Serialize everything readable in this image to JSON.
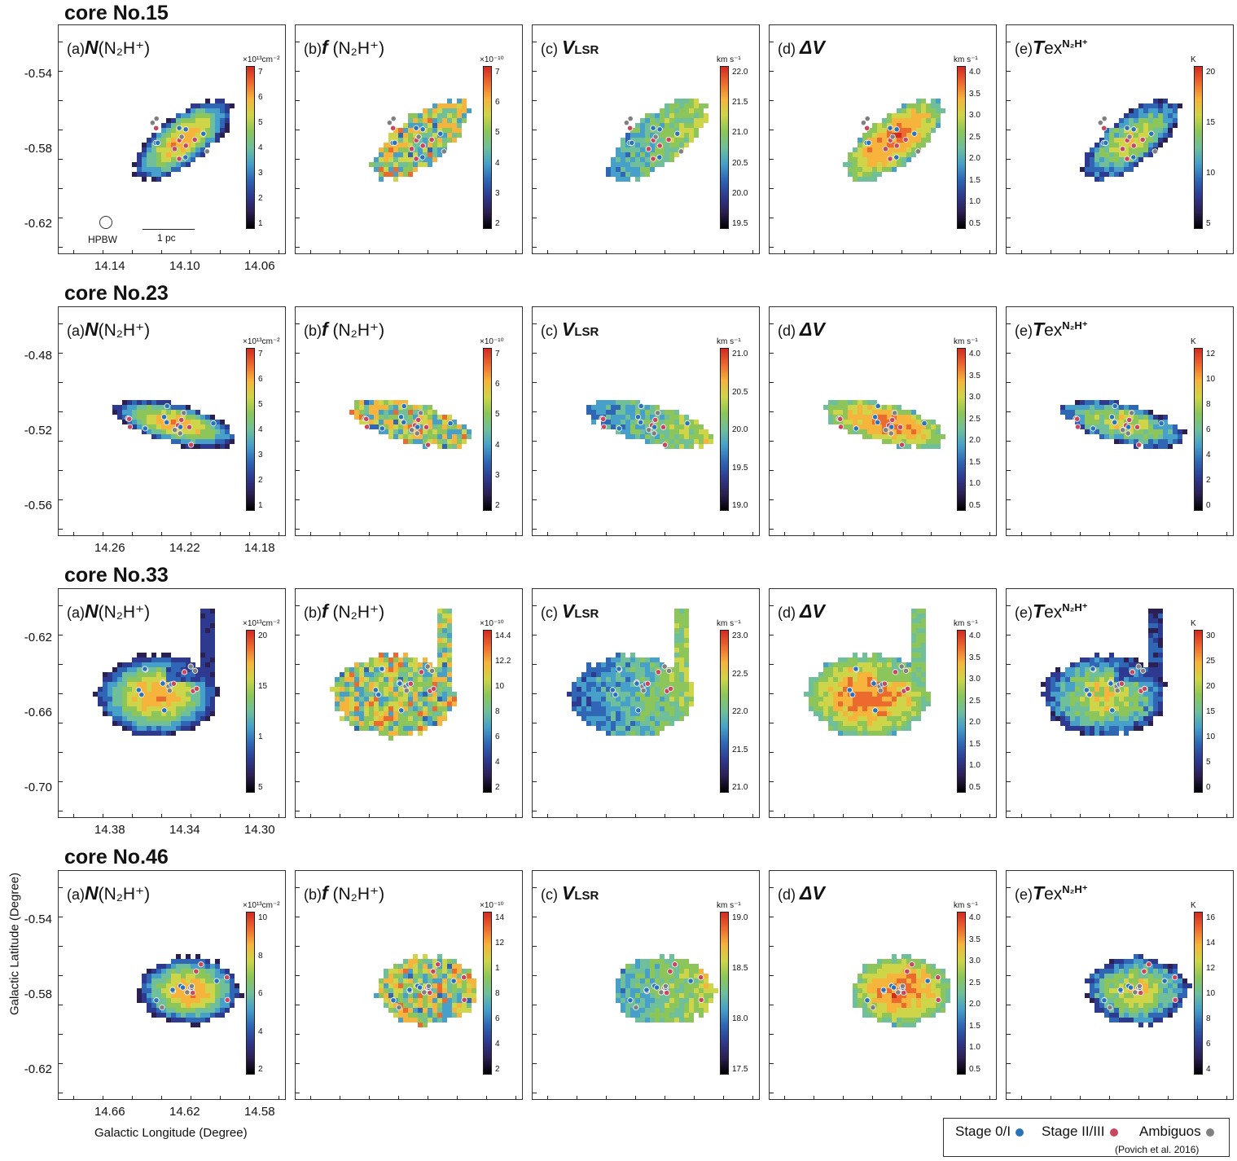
{
  "axis": {
    "ylabel": "Galactic Latitude (Degree)",
    "xlabel": "Galactic Longitude (Degree)"
  },
  "panel_labels": [
    {
      "pre": "(a)",
      "sym": "N",
      "rest": "(N₂H⁺)"
    },
    {
      "pre": "(b)",
      "sym": "f",
      "rest": " (N₂H⁺)"
    },
    {
      "pre": "(c) ",
      "sym": "V",
      "rest": "LSR"
    },
    {
      "pre": "(d) ",
      "sym": "ΔV",
      "rest": ""
    },
    {
      "pre": "(e)",
      "sym": "T",
      "rest": "ex"
    }
  ],
  "tex_super": "N₂H⁺",
  "hpbw": {
    "label": "HPBW",
    "scale": "1 pc"
  },
  "legend": {
    "items": [
      {
        "label": "Stage 0/I",
        "color": "#2a73b8"
      },
      {
        "label": "Stage II/III",
        "color": "#c8475e"
      },
      {
        "label": "Ambiguos",
        "color": "#808080"
      }
    ],
    "reference": "(Povich et al. 2016)"
  },
  "colors": {
    "colormap": [
      "#000000",
      "#2c1f52",
      "#2e3a8f",
      "#2f66b5",
      "#46a0c9",
      "#6fbf9a",
      "#8cc65a",
      "#cfd548",
      "#f6b43c",
      "#ed6a2e",
      "#d12a22"
    ],
    "stage01": "#2a73b8",
    "stage23": "#c8475e",
    "ambiguous": "#808080"
  },
  "chart_data": [
    {
      "type": "heatmap",
      "title": "core No.15",
      "ylabel": "Galactic Latitude (Degree)",
      "xlabel": "Galactic Longitude (Degree)",
      "yticks": [
        "-0.54",
        "-0.58",
        "-0.62"
      ],
      "xticks": [
        "14.14",
        "14.10",
        "14.06"
      ],
      "colorbars": [
        {
          "unit": "×10¹³cm⁻²",
          "ticks": [
            "7",
            "6",
            "5",
            "4",
            "3",
            "2",
            "1"
          ]
        },
        {
          "unit": "×10⁻¹⁰",
          "ticks": [
            "7",
            "6",
            "5",
            "4",
            "3",
            "2"
          ]
        },
        {
          "unit": "km s⁻¹",
          "ticks": [
            "22.0",
            "21.5",
            "21.0",
            "20.5",
            "20.0",
            "19.5"
          ]
        },
        {
          "unit": "km s⁻¹",
          "ticks": [
            "4.0",
            "3.5",
            "3.0",
            "2.5",
            "2.0",
            "1.5",
            "1.0",
            "0.5"
          ]
        },
        {
          "unit": "K",
          "ticks": [
            "20",
            "15",
            "10",
            "5"
          ]
        }
      ]
    },
    {
      "type": "heatmap",
      "title": "core No.23",
      "yticks": [
        "-0.48",
        "-0.52",
        "-0.56"
      ],
      "xticks": [
        "14.26",
        "14.22",
        "14.18"
      ],
      "colorbars": [
        {
          "unit": "×10¹³cm⁻²",
          "ticks": [
            "7",
            "6",
            "5",
            "4",
            "3",
            "2",
            "1"
          ]
        },
        {
          "unit": "×10⁻¹⁰",
          "ticks": [
            "7",
            "6",
            "5",
            "4",
            "3",
            "2"
          ]
        },
        {
          "unit": "km s⁻¹",
          "ticks": [
            "21.0",
            "20.5",
            "20.0",
            "19.5",
            "19.0"
          ]
        },
        {
          "unit": "km s⁻¹",
          "ticks": [
            "4.0",
            "3.5",
            "3.0",
            "2.5",
            "2.0",
            "1.5",
            "1.0",
            "0.5"
          ]
        },
        {
          "unit": "K",
          "ticks": [
            "12",
            "10",
            "8",
            "6",
            "4",
            "2",
            "0"
          ]
        }
      ]
    },
    {
      "type": "heatmap",
      "title": "core No.33",
      "yticks": [
        "-0.62",
        "-0.66",
        "-0.70"
      ],
      "xticks": [
        "14.38",
        "14.34",
        "14.30"
      ],
      "colorbars": [
        {
          "unit": "×10¹³cm⁻²",
          "ticks": [
            "20",
            "15",
            "1",
            "5"
          ]
        },
        {
          "unit": "×10⁻¹⁰",
          "ticks": [
            "14.4",
            "12.2",
            "10",
            "8",
            "6",
            "4",
            "2"
          ]
        },
        {
          "unit": "km s⁻¹",
          "ticks": [
            "23.0",
            "22.5",
            "22.0",
            "21.5",
            "21.0"
          ]
        },
        {
          "unit": "km s⁻¹",
          "ticks": [
            "4.0",
            "3.5",
            "3.0",
            "2.5",
            "2.0",
            "1.5",
            "1.0",
            "0.5"
          ]
        },
        {
          "unit": "K",
          "ticks": [
            "30",
            "25",
            "20",
            "15",
            "10",
            "5",
            "0"
          ]
        }
      ]
    },
    {
      "type": "heatmap",
      "title": "core No.46",
      "yticks": [
        "-0.54",
        "-0.58",
        "-0.62"
      ],
      "xticks": [
        "14.66",
        "14.62",
        "14.58"
      ],
      "colorbars": [
        {
          "unit": "×10¹³cm⁻²",
          "ticks": [
            "10",
            "8",
            "6",
            "4",
            "2"
          ]
        },
        {
          "unit": "×10⁻¹⁰",
          "ticks": [
            "14",
            "12",
            "1",
            "8",
            "6",
            "4",
            "2"
          ]
        },
        {
          "unit": "km s⁻¹",
          "ticks": [
            "19.0",
            "18.5",
            "18.0",
            "17.5"
          ]
        },
        {
          "unit": "km s⁻¹",
          "ticks": [
            "4.0",
            "3.5",
            "3.0",
            "2.5",
            "2.0",
            "1.5",
            "1.0",
            "0.5"
          ]
        },
        {
          "unit": "K",
          "ticks": [
            "16",
            "14",
            "12",
            "10",
            "8",
            "6",
            "4"
          ]
        }
      ]
    }
  ]
}
